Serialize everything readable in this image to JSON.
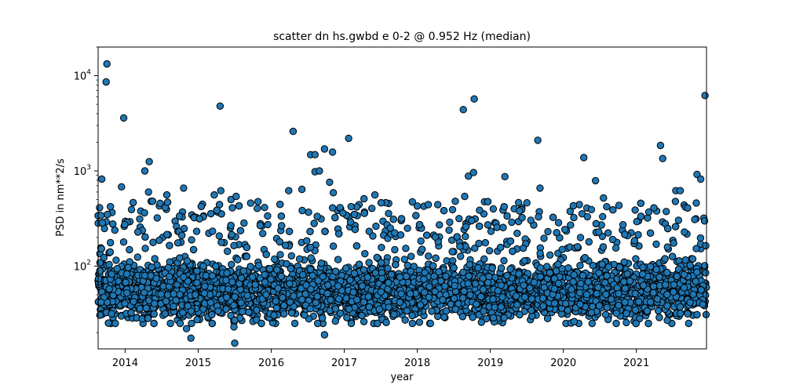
{
  "chart_data": {
    "type": "scatter",
    "title": "scatter dn hs.gwbd e 0-2 @ 0.952 Hz (median)",
    "xlabel": "year",
    "ylabel": "PSD in nm**2/s",
    "y_scale": "log",
    "xlim": [
      2013.63,
      2021.96
    ],
    "ylim": [
      13.5,
      20000
    ],
    "x_ticks": [
      2014,
      2015,
      2016,
      2017,
      2018,
      2019,
      2020,
      2021
    ],
    "y_ticks": [
      {
        "value": 100,
        "base": "10",
        "exp": "2"
      },
      {
        "value": 1000,
        "base": "10",
        "exp": "3"
      },
      {
        "value": 10000,
        "base": "10",
        "exp": "4"
      }
    ],
    "grid": false,
    "marker_color": "#1f77b4",
    "notable_points": [
      {
        "x": 2013.75,
        "y": 13300
      },
      {
        "x": 2013.74,
        "y": 8600
      },
      {
        "x": 2013.98,
        "y": 3600
      },
      {
        "x": 2013.68,
        "y": 820
      },
      {
        "x": 2013.95,
        "y": 680
      },
      {
        "x": 2013.67,
        "y": 340
      },
      {
        "x": 2014.33,
        "y": 1250
      },
      {
        "x": 2014.27,
        "y": 1000
      },
      {
        "x": 2014.32,
        "y": 600
      },
      {
        "x": 2014.57,
        "y": 560
      },
      {
        "x": 2014.8,
        "y": 660
      },
      {
        "x": 2014.84,
        "y": 22
      },
      {
        "x": 2014.9,
        "y": 17.5
      },
      {
        "x": 2015.3,
        "y": 4800
      },
      {
        "x": 2015.22,
        "y": 560
      },
      {
        "x": 2015.31,
        "y": 620
      },
      {
        "x": 2015.45,
        "y": 500
      },
      {
        "x": 2015.52,
        "y": 540
      },
      {
        "x": 2015.5,
        "y": 15.5
      },
      {
        "x": 2015.49,
        "y": 23
      },
      {
        "x": 2015.5,
        "y": 27
      },
      {
        "x": 2016.3,
        "y": 2600
      },
      {
        "x": 2016.24,
        "y": 620
      },
      {
        "x": 2016.42,
        "y": 640
      },
      {
        "x": 2016.54,
        "y": 1480
      },
      {
        "x": 2016.6,
        "y": 1480
      },
      {
        "x": 2016.6,
        "y": 980
      },
      {
        "x": 2016.66,
        "y": 1000
      },
      {
        "x": 2016.73,
        "y": 1700
      },
      {
        "x": 2016.84,
        "y": 1580
      },
      {
        "x": 2016.8,
        "y": 760
      },
      {
        "x": 2016.85,
        "y": 590
      },
      {
        "x": 2016.73,
        "y": 19
      },
      {
        "x": 2017.06,
        "y": 2200
      },
      {
        "x": 2017.27,
        "y": 510
      },
      {
        "x": 2017.42,
        "y": 560
      },
      {
        "x": 2018.52,
        "y": 480
      },
      {
        "x": 2018.65,
        "y": 540
      },
      {
        "x": 2018.7,
        "y": 880
      },
      {
        "x": 2018.63,
        "y": 4400
      },
      {
        "x": 2018.78,
        "y": 5700
      },
      {
        "x": 2018.77,
        "y": 960
      },
      {
        "x": 2019.2,
        "y": 870
      },
      {
        "x": 2019.65,
        "y": 2100
      },
      {
        "x": 2019.68,
        "y": 660
      },
      {
        "x": 2019.4,
        "y": 380
      },
      {
        "x": 2020.28,
        "y": 1380
      },
      {
        "x": 2020.44,
        "y": 790
      },
      {
        "x": 2020.55,
        "y": 520
      },
      {
        "x": 2020.33,
        "y": 330
      },
      {
        "x": 2021.33,
        "y": 1850
      },
      {
        "x": 2021.36,
        "y": 1350
      },
      {
        "x": 2021.54,
        "y": 620
      },
      {
        "x": 2021.6,
        "y": 620
      },
      {
        "x": 2021.83,
        "y": 920
      },
      {
        "x": 2021.88,
        "y": 820
      },
      {
        "x": 2021.94,
        "y": 6200
      },
      {
        "x": 2021.82,
        "y": 460
      },
      {
        "x": 2021.17,
        "y": 370
      }
    ],
    "bulk_distribution": {
      "x_range": [
        2013.63,
        2021.96
      ],
      "typical_median": 55,
      "typical_low": 25,
      "typical_high": 140,
      "outlier_fraction": 0.08,
      "point_count": 5200
    }
  }
}
